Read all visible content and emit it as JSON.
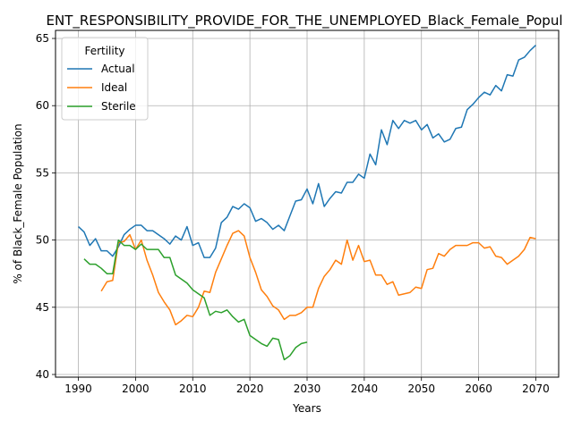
{
  "chart_data": {
    "type": "line",
    "title": "ENT_RESPONSIBILITY_PROVIDE_FOR_THE_UNEMPLOYED_Black_Female_Popul",
    "xlabel": "Years",
    "ylabel": "% of Black_Female Population",
    "xlim": [
      1986,
      2074
    ],
    "ylim": [
      39.8,
      65.6
    ],
    "xticks": [
      1990,
      2000,
      2010,
      2020,
      2030,
      2040,
      2050,
      2060,
      2070
    ],
    "yticks": [
      40,
      45,
      50,
      55,
      60,
      65
    ],
    "grid": true,
    "legend": {
      "title": "Fertility",
      "placement": "upper-left"
    },
    "series": [
      {
        "name": "Actual",
        "color": "#1f77b4",
        "x": [
          1990,
          1991,
          1992,
          1993,
          1994,
          1995,
          1996,
          1997,
          1998,
          1999,
          2000,
          2001,
          2002,
          2003,
          2004,
          2005,
          2006,
          2007,
          2008,
          2009,
          2010,
          2011,
          2012,
          2013,
          2014,
          2015,
          2016,
          2017,
          2018,
          2019,
          2020,
          2021,
          2022,
          2023,
          2024,
          2025,
          2026,
          2027,
          2028,
          2029,
          2030,
          2031,
          2032,
          2033,
          2034,
          2035,
          2036,
          2037,
          2038,
          2039,
          2040,
          2041,
          2042,
          2043,
          2044,
          2045,
          2046,
          2047,
          2048,
          2049,
          2050,
          2051,
          2052,
          2053,
          2054,
          2055,
          2056,
          2057,
          2058,
          2059,
          2060,
          2061,
          2062,
          2063,
          2064,
          2065,
          2066,
          2067,
          2068,
          2069,
          2070
        ],
        "values": [
          51.0,
          50.6,
          49.6,
          50.1,
          49.2,
          49.2,
          48.8,
          49.5,
          50.4,
          50.8,
          51.1,
          51.1,
          50.7,
          50.7,
          50.4,
          50.1,
          49.7,
          50.3,
          50.0,
          51.0,
          49.6,
          49.8,
          48.7,
          48.7,
          49.4,
          51.3,
          51.7,
          52.5,
          52.3,
          52.7,
          52.4,
          51.4,
          51.6,
          51.3,
          50.8,
          51.1,
          50.7,
          51.8,
          52.9,
          53.0,
          53.8,
          52.7,
          54.2,
          52.5,
          53.1,
          53.6,
          53.5,
          54.3,
          54.3,
          54.9,
          54.6,
          56.4,
          55.6,
          58.2,
          57.1,
          58.9,
          58.3,
          58.9,
          58.7,
          58.9,
          58.2,
          58.6,
          57.6,
          57.9,
          57.3,
          57.5,
          58.3,
          58.4,
          59.7,
          60.1,
          60.6,
          61.0,
          60.8,
          61.5,
          61.1,
          62.3,
          62.2,
          63.4,
          63.6,
          64.1,
          64.5
        ]
      },
      {
        "name": "Ideal",
        "color": "#ff7f0e",
        "x": [
          1994,
          1995,
          1996,
          1997,
          1998,
          1999,
          2000,
          2001,
          2002,
          2003,
          2004,
          2005,
          2006,
          2007,
          2008,
          2009,
          2010,
          2011,
          2012,
          2013,
          2014,
          2015,
          2016,
          2017,
          2018,
          2019,
          2020,
          2021,
          2022,
          2023,
          2024,
          2025,
          2026,
          2027,
          2028,
          2029,
          2030,
          2031,
          2032,
          2033,
          2034,
          2035,
          2036,
          2037,
          2038,
          2039,
          2040,
          2041,
          2042,
          2043,
          2044,
          2045,
          2046,
          2047,
          2048,
          2049,
          2050,
          2051,
          2052,
          2053,
          2054,
          2055,
          2056,
          2057,
          2058,
          2059,
          2060,
          2061,
          2062,
          2063,
          2064,
          2065,
          2066,
          2067,
          2068,
          2069,
          2070
        ],
        "values": [
          46.2,
          46.9,
          47.0,
          49.8,
          49.9,
          50.4,
          49.3,
          50.0,
          48.5,
          47.4,
          46.1,
          45.4,
          44.8,
          43.7,
          44.0,
          44.4,
          44.3,
          45.0,
          46.2,
          46.1,
          47.6,
          48.6,
          49.6,
          50.5,
          50.7,
          50.3,
          48.7,
          47.6,
          46.3,
          45.8,
          45.1,
          44.8,
          44.1,
          44.4,
          44.4,
          44.6,
          45.0,
          45.0,
          46.4,
          47.3,
          47.8,
          48.5,
          48.2,
          50.0,
          48.5,
          49.6,
          48.4,
          48.5,
          47.4,
          47.4,
          46.7,
          46.9,
          45.9,
          46.0,
          46.1,
          46.5,
          46.4,
          47.8,
          47.9,
          49.0,
          48.8,
          49.3,
          49.6,
          49.6,
          49.6,
          49.8,
          49.8,
          49.4,
          49.5,
          48.8,
          48.7,
          48.2,
          48.5,
          48.8,
          49.3,
          50.2,
          50.1
        ]
      },
      {
        "name": "Sterile",
        "color": "#2ca02c",
        "x": [
          1991,
          1992,
          1993,
          1994,
          1995,
          1996,
          1997,
          1998,
          1999,
          2000,
          2001,
          2002,
          2003,
          2004,
          2005,
          2006,
          2007,
          2008,
          2009,
          2010,
          2011,
          2012,
          2013,
          2014,
          2015,
          2016,
          2017,
          2018,
          2019,
          2020,
          2021,
          2022,
          2023,
          2024,
          2025,
          2026,
          2027,
          2028,
          2029,
          2030
        ],
        "values": [
          48.6,
          48.2,
          48.2,
          47.9,
          47.5,
          47.5,
          50.0,
          49.6,
          49.6,
          49.3,
          49.7,
          49.3,
          49.3,
          49.3,
          48.7,
          48.7,
          47.4,
          47.1,
          46.8,
          46.3,
          46.0,
          45.7,
          44.4,
          44.7,
          44.6,
          44.8,
          44.3,
          43.9,
          44.1,
          42.9,
          42.6,
          42.3,
          42.1,
          42.7,
          42.6,
          41.1,
          41.4,
          42.0,
          42.3,
          42.4
        ]
      }
    ]
  }
}
